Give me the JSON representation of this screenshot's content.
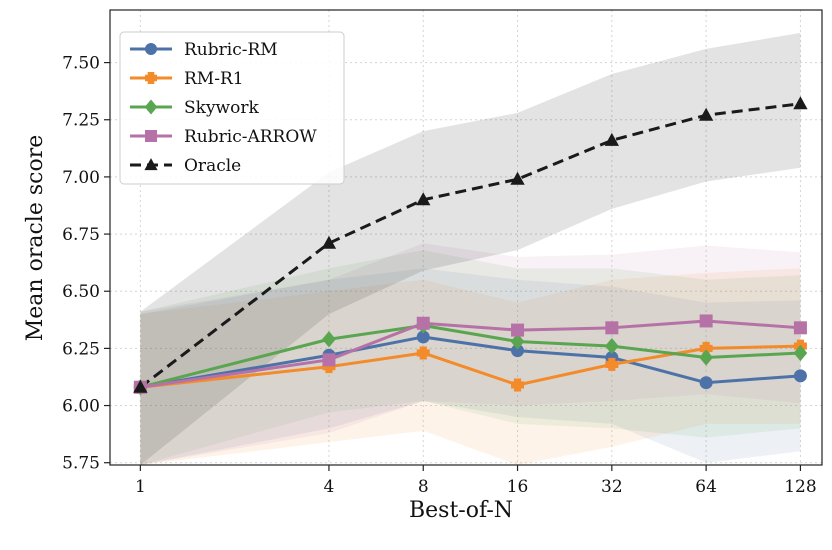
{
  "chart_data": {
    "type": "line",
    "xlabel": "Best-of-N",
    "ylabel": "Mean oracle score",
    "x": [
      1,
      4,
      8,
      16,
      32,
      64,
      128
    ],
    "x_ticks": [
      "1",
      "4",
      "8",
      "16",
      "32",
      "64",
      "128"
    ],
    "x_scale": "log2",
    "xlim": [
      0.8,
      150
    ],
    "ylim": [
      5.74,
      7.73
    ],
    "y_ticks": [
      "5.75",
      "6.00",
      "6.25",
      "6.50",
      "6.75",
      "7.00",
      "7.25",
      "7.50"
    ],
    "grid": true,
    "legend_position": "top-left",
    "series": [
      {
        "name": "Rubric-RM",
        "color": "#4c72a8",
        "marker": "circle",
        "linestyle": "solid",
        "values": [
          6.08,
          6.22,
          6.3,
          6.24,
          6.21,
          6.1,
          6.13
        ],
        "band_lower": [
          5.74,
          5.9,
          6.02,
          5.95,
          5.92,
          5.75,
          5.8
        ],
        "band_upper": [
          6.4,
          6.55,
          6.6,
          6.55,
          6.52,
          6.45,
          6.46
        ]
      },
      {
        "name": "RM-R1",
        "color": "#f38b2b",
        "marker": "plus",
        "linestyle": "solid",
        "values": [
          6.08,
          6.17,
          6.23,
          6.09,
          6.18,
          6.25,
          6.26
        ],
        "band_lower": [
          5.74,
          5.84,
          5.89,
          5.74,
          5.82,
          5.92,
          5.92
        ],
        "band_upper": [
          6.4,
          6.5,
          6.55,
          6.45,
          6.55,
          6.58,
          6.6
        ]
      },
      {
        "name": "Skywork",
        "color": "#5aa54f",
        "marker": "diamond",
        "linestyle": "solid",
        "values": [
          6.08,
          6.29,
          6.35,
          6.28,
          6.26,
          6.21,
          6.23
        ],
        "band_lower": [
          5.74,
          5.97,
          6.02,
          5.92,
          5.9,
          5.86,
          5.9
        ],
        "band_upper": [
          6.41,
          6.6,
          6.68,
          6.6,
          6.6,
          6.55,
          6.57
        ]
      },
      {
        "name": "Rubric-ARROW",
        "color": "#b672a6",
        "marker": "square",
        "linestyle": "solid",
        "values": [
          6.08,
          6.2,
          6.36,
          6.33,
          6.34,
          6.37,
          6.34
        ],
        "band_lower": [
          5.74,
          5.88,
          6.02,
          6.0,
          6.02,
          6.05,
          6.01
        ],
        "band_upper": [
          6.41,
          6.55,
          6.71,
          6.65,
          6.66,
          6.7,
          6.67
        ]
      },
      {
        "name": "Oracle",
        "color": "#1a1a1a",
        "marker": "triangle",
        "linestyle": "dashed",
        "values": [
          6.08,
          6.71,
          6.9,
          6.99,
          7.16,
          7.27,
          7.32
        ],
        "band_lower": [
          5.74,
          6.4,
          6.59,
          6.68,
          6.86,
          6.98,
          7.04
        ],
        "band_upper": [
          6.41,
          7.02,
          7.2,
          7.28,
          7.45,
          7.56,
          7.63
        ]
      }
    ]
  }
}
